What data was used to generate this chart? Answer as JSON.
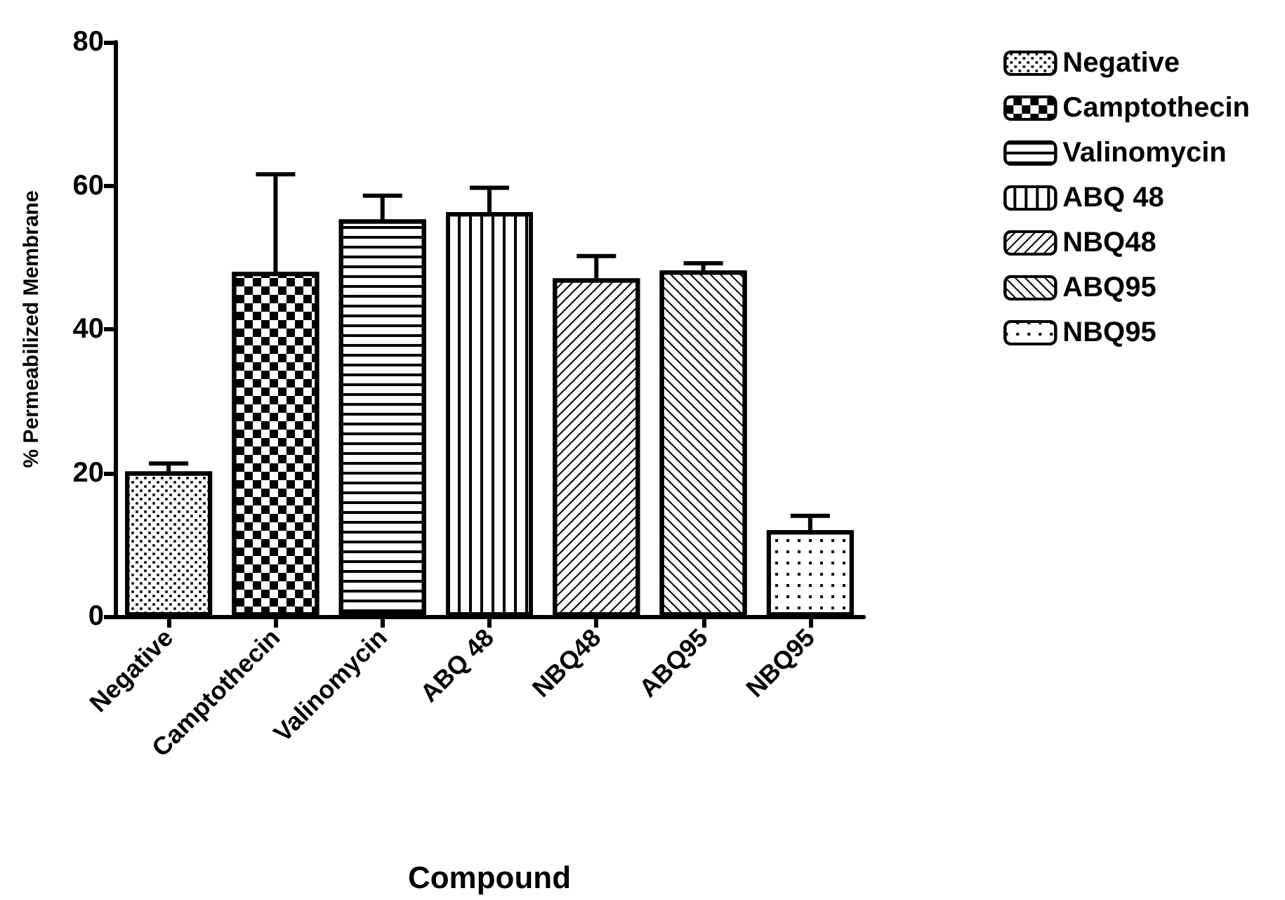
{
  "chart_data": {
    "type": "bar",
    "xlabel": "Compound",
    "ylabel": "% Permeabilized Membrane",
    "categories": [
      "Negative",
      "Camptothecin",
      "Valinomycin",
      "ABQ 48",
      "NBQ48",
      "ABQ95",
      "NBQ95"
    ],
    "series": [
      {
        "name": "Negative",
        "color": "#000000",
        "values": [
          20.2,
          null,
          null,
          null,
          null,
          null,
          null
        ],
        "errors": [
          [
            20.2,
            21.3
          ],
          null,
          null,
          null,
          null,
          null,
          null
        ]
      },
      {
        "name": "Camptothecin",
        "color": "#000000",
        "values": [
          null,
          48.0,
          null,
          null,
          null,
          null,
          null
        ],
        "errors": [
          null,
          [
            48.0,
            61.6
          ],
          null,
          null,
          null,
          null,
          null
        ]
      },
      {
        "name": "Valinomycin",
        "color": "#000000",
        "values": [
          null,
          null,
          55.3,
          null,
          null,
          null,
          null
        ],
        "errors": [
          null,
          null,
          [
            55.3,
            58.6
          ],
          null,
          null,
          null,
          null
        ]
      },
      {
        "name": "ABQ 48",
        "color": "#000000",
        "values": [
          null,
          null,
          null,
          56.3,
          null,
          null,
          null
        ],
        "errors": [
          null,
          null,
          null,
          [
            56.3,
            59.7
          ],
          null,
          null,
          null
        ]
      },
      {
        "name": "NBQ48",
        "color": "#000000",
        "values": [
          null,
          null,
          null,
          null,
          47.1,
          null,
          null
        ],
        "errors": [
          null,
          null,
          null,
          null,
          [
            47.1,
            50.2
          ],
          null,
          null
        ]
      },
      {
        "name": "ABQ95",
        "color": "#000000",
        "values": [
          null,
          null,
          null,
          null,
          null,
          48.2,
          null
        ],
        "errors": [
          null,
          null,
          null,
          null,
          null,
          [
            48.2,
            49.2
          ],
          null
        ]
      },
      {
        "name": "NBQ95",
        "color": "#000000",
        "values": [
          null,
          null,
          null,
          null,
          null,
          null,
          12.0
        ],
        "errors": [
          null,
          null,
          null,
          null,
          null,
          null,
          [
            12.0,
            14.0
          ]
        ]
      }
    ],
    "ylim": [
      0,
      80
    ],
    "yticks": [
      0,
      20,
      40,
      60,
      80
    ],
    "grid": false,
    "legend": "top right"
  }
}
